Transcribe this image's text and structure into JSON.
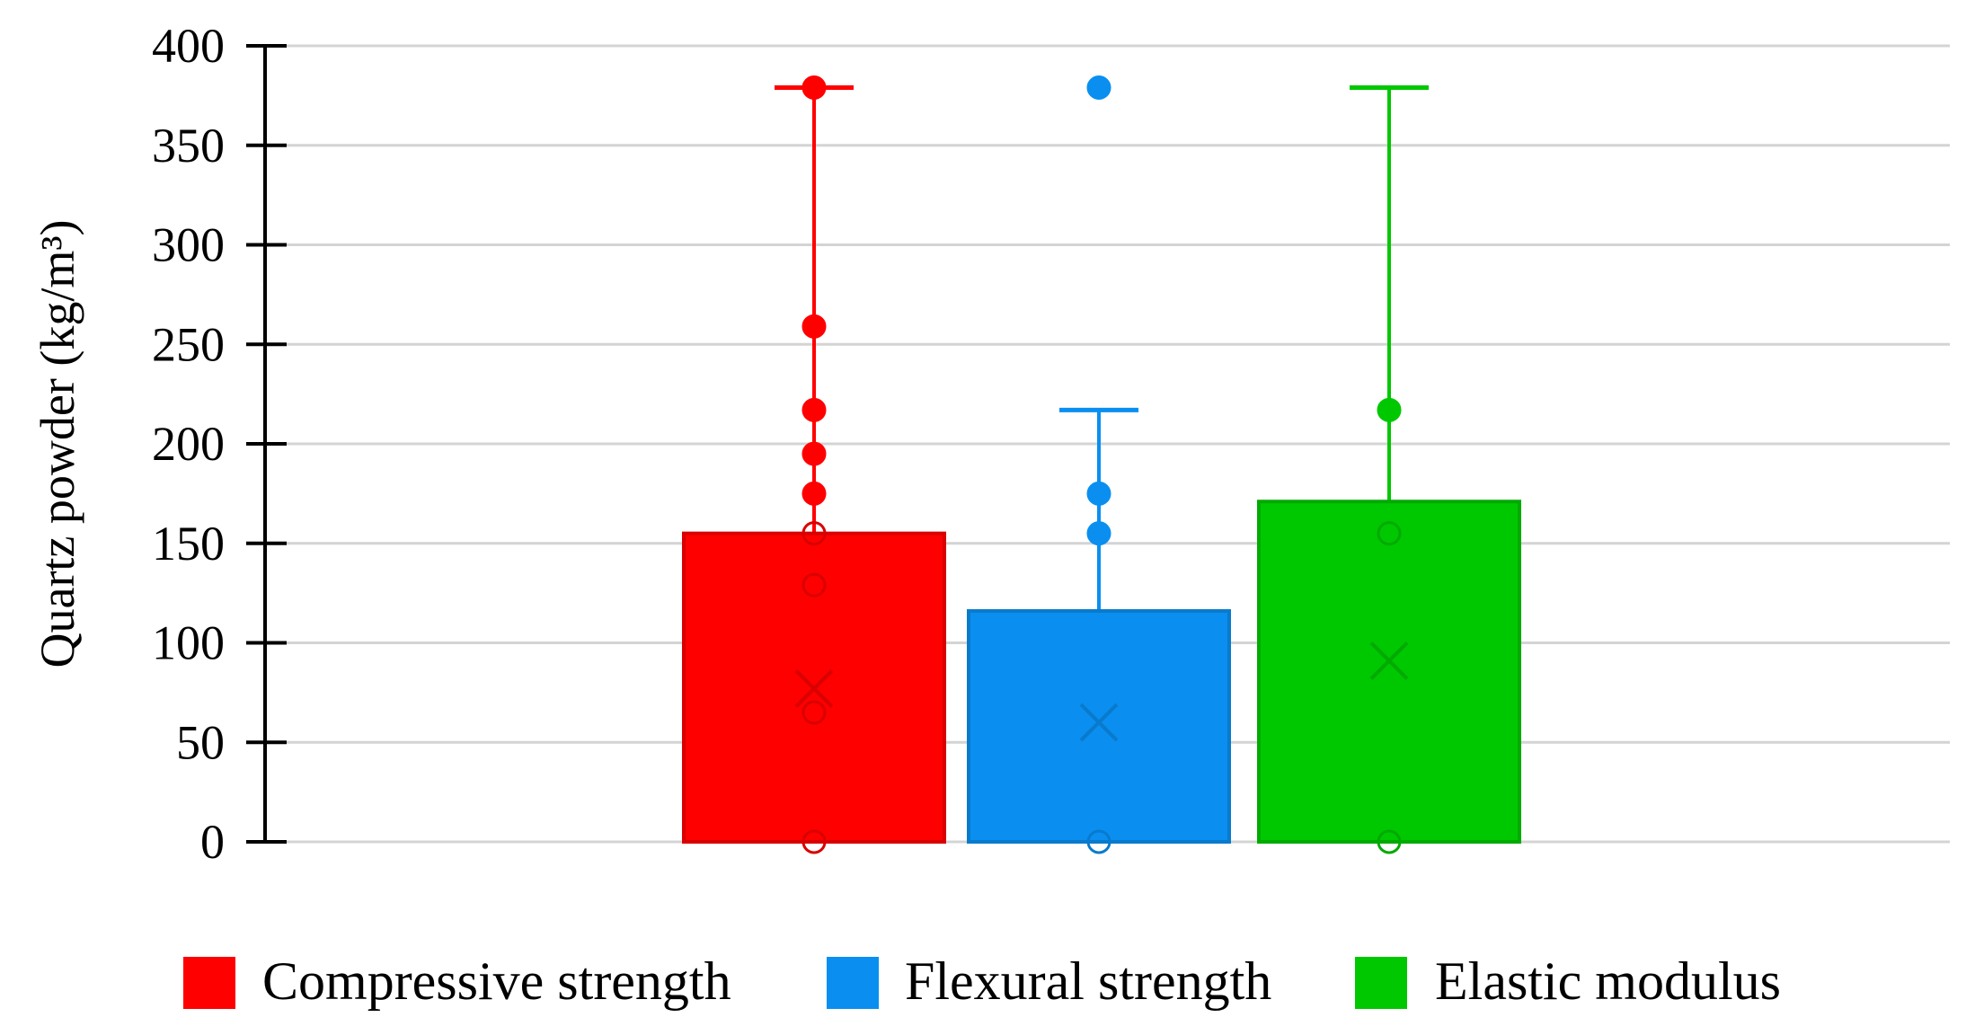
{
  "chart_data": {
    "type": "box",
    "title": "",
    "xlabel": "",
    "ylabel": "Quartz powder (kg/m³)",
    "ylim": [
      0,
      400
    ],
    "yticks": [
      0,
      50,
      100,
      150,
      200,
      250,
      300,
      350,
      400
    ],
    "grid": true,
    "legend_position": "bottom",
    "series": [
      {
        "name": "Compressive strength",
        "color": "#ff0000",
        "min": 0,
        "q1": 0,
        "median": 0,
        "q3": 155,
        "whisker_high": 379,
        "mean": 77,
        "points": [
          0,
          65,
          129,
          155,
          175,
          195,
          217,
          259,
          379
        ]
      },
      {
        "name": "Flexural strength",
        "color": "#0a8ff0",
        "min": 0,
        "q1": 0,
        "median": 0,
        "q3": 116,
        "whisker_high": 217,
        "mean": 60,
        "points": [
          0,
          155,
          175
        ],
        "outliers": [
          379
        ]
      },
      {
        "name": "Elastic modulus",
        "color": "#00c800",
        "min": 0,
        "q1": 0,
        "median": 0,
        "q3": 171,
        "whisker_high": 379,
        "mean": 91,
        "points": [
          0,
          155,
          217
        ]
      }
    ]
  }
}
